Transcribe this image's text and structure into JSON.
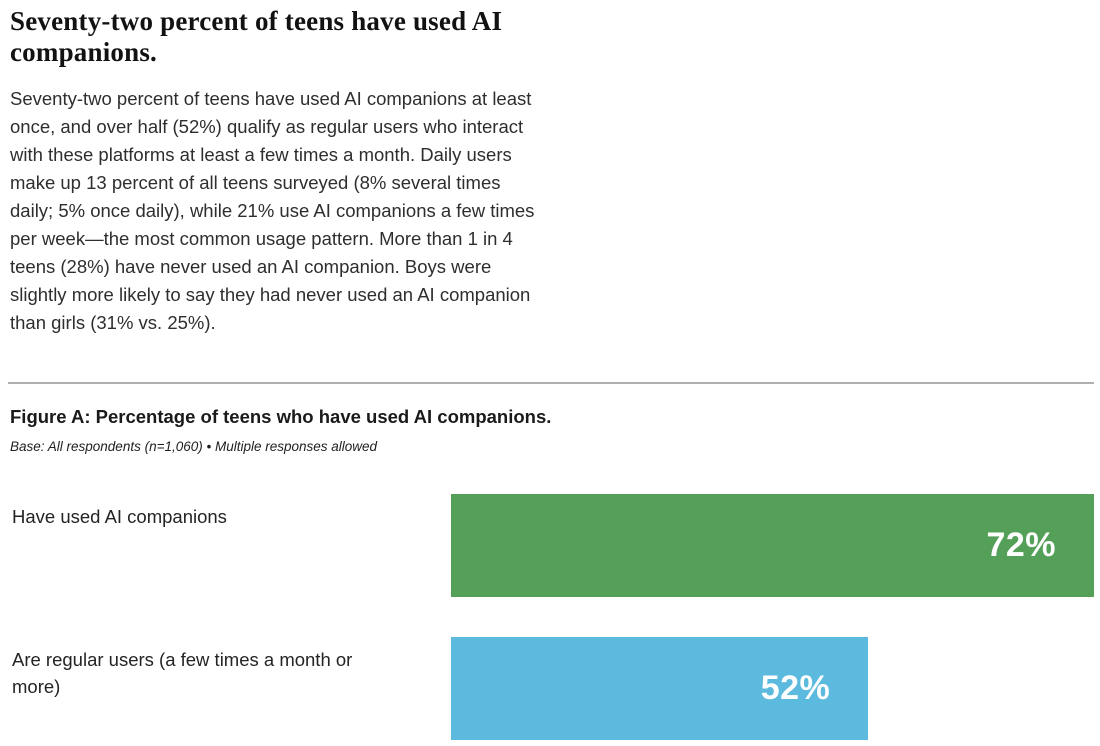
{
  "report": {
    "heading": "Seventy-two percent of teens have used AI companions.",
    "body": "Seventy-two percent of teens have used AI companions at least once, and over half (52%) qualify as regular users who interact with these platforms at least a few times a month. Daily users make up 13 percent of all teens surveyed (8% several times daily; 5% once daily), while 21% use AI companions a few times per week—the most common usage pattern. More than 1 in 4 teens (28%) have never used an AI companion. Boys were slightly more likely to say they had never used an AI companion than girls (31% vs. 25%)."
  },
  "figure": {
    "title": "Figure A: Percentage of teens who have used AI companions.",
    "base_note": "Base: All respondents (n=1,060) • Multiple responses allowed"
  },
  "chart_data": {
    "type": "bar",
    "orientation": "horizontal",
    "title": "Figure A: Percentage of teens who have used AI companions.",
    "subtitle": "Base: All respondents (n=1,060) • Multiple responses allowed",
    "categories": [
      "Have used AI companions",
      "Are regular users (a few times a month or more)"
    ],
    "values": [
      72,
      52
    ],
    "value_labels": [
      "72%",
      "52%"
    ],
    "bar_colors": [
      "#55a058",
      "#5cbade"
    ],
    "value_label_color": "#ffffff",
    "xlim": [
      0,
      72
    ],
    "grid": false,
    "legend": false,
    "layout": {
      "bar_width_pct": [
        100,
        64.9
      ],
      "value_labels_inside_end": true
    }
  }
}
